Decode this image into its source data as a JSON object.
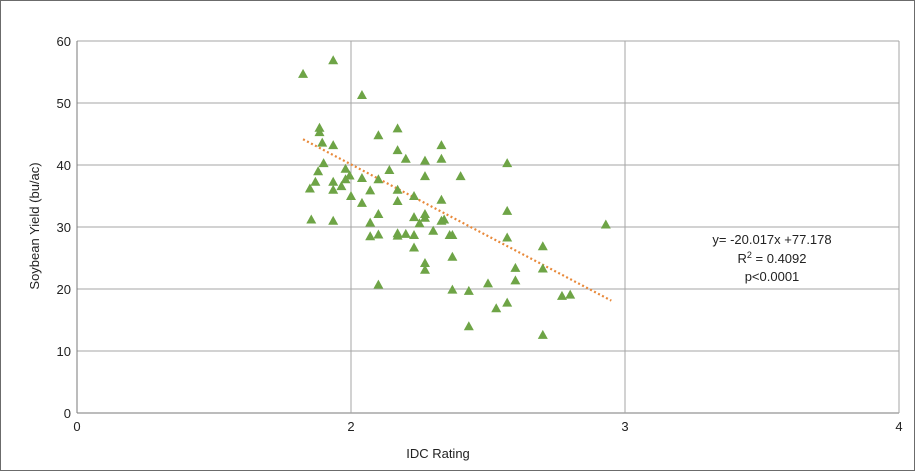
{
  "chart_data": {
    "type": "scatter",
    "title": "",
    "xlabel": "IDC Rating",
    "ylabel": "Soybean Yield (bu/ac)",
    "xlim": [
      0,
      4
    ],
    "ylim": [
      0,
      60
    ],
    "x_ticks": [
      "0",
      "2",
      "3",
      "4"
    ],
    "y_ticks": [
      "0",
      "10",
      "20",
      "30",
      "40",
      "50",
      "60"
    ],
    "grid": true,
    "marker": "triangle",
    "marker_color": "#6ea446",
    "trendline": {
      "style": "dotted",
      "color": "#e8893a",
      "x_start": 1.65,
      "x_end": 2.95,
      "equation": "y= -20.017x +77.178",
      "r_squared_label": "R",
      "r_squared_exp": "2",
      "r_squared_value": " = 0.4092",
      "p_value": "p<0.0001"
    },
    "points": [
      [
        1.65,
        54.7
      ],
      [
        1.7,
        36.2
      ],
      [
        1.71,
        31.2
      ],
      [
        1.74,
        37.3
      ],
      [
        1.76,
        39.0
      ],
      [
        1.77,
        46.0
      ],
      [
        1.77,
        45.3
      ],
      [
        1.79,
        43.6
      ],
      [
        1.8,
        40.3
      ],
      [
        1.87,
        56.9
      ],
      [
        1.87,
        43.2
      ],
      [
        1.87,
        37.3
      ],
      [
        1.87,
        36.0
      ],
      [
        1.87,
        31.0
      ],
      [
        1.93,
        36.6
      ],
      [
        1.96,
        39.4
      ],
      [
        1.96,
        37.7
      ],
      [
        1.99,
        38.3
      ],
      [
        2.0,
        35.0
      ],
      [
        2.04,
        51.3
      ],
      [
        2.04,
        37.9
      ],
      [
        2.04,
        33.9
      ],
      [
        2.07,
        35.9
      ],
      [
        2.07,
        30.7
      ],
      [
        2.07,
        28.5
      ],
      [
        2.1,
        44.8
      ],
      [
        2.1,
        37.7
      ],
      [
        2.1,
        32.1
      ],
      [
        2.1,
        28.8
      ],
      [
        2.1,
        20.7
      ],
      [
        2.14,
        39.2
      ],
      [
        2.17,
        45.9
      ],
      [
        2.17,
        42.4
      ],
      [
        2.17,
        36.0
      ],
      [
        2.17,
        34.2
      ],
      [
        2.17,
        29.0
      ],
      [
        2.17,
        28.6
      ],
      [
        2.2,
        41.0
      ],
      [
        2.2,
        28.9
      ],
      [
        2.23,
        35.0
      ],
      [
        2.23,
        31.6
      ],
      [
        2.23,
        28.7
      ],
      [
        2.23,
        26.7
      ],
      [
        2.25,
        30.6
      ],
      [
        2.27,
        40.7
      ],
      [
        2.27,
        38.2
      ],
      [
        2.27,
        32.1
      ],
      [
        2.27,
        31.5
      ],
      [
        2.27,
        24.2
      ],
      [
        2.27,
        23.1
      ],
      [
        2.3,
        29.4
      ],
      [
        2.33,
        43.2
      ],
      [
        2.33,
        41.0
      ],
      [
        2.33,
        34.4
      ],
      [
        2.33,
        31.0
      ],
      [
        2.34,
        31.2
      ],
      [
        2.36,
        28.7
      ],
      [
        2.37,
        28.7
      ],
      [
        2.37,
        25.2
      ],
      [
        2.37,
        19.9
      ],
      [
        2.4,
        38.2
      ],
      [
        2.43,
        19.7
      ],
      [
        2.43,
        14.0
      ],
      [
        2.5,
        20.9
      ],
      [
        2.53,
        16.9
      ],
      [
        2.57,
        40.3
      ],
      [
        2.57,
        32.6
      ],
      [
        2.57,
        28.3
      ],
      [
        2.57,
        17.8
      ],
      [
        2.6,
        23.4
      ],
      [
        2.6,
        21.4
      ],
      [
        2.7,
        26.9
      ],
      [
        2.7,
        23.3
      ],
      [
        2.7,
        12.6
      ],
      [
        2.77,
        18.9
      ],
      [
        2.8,
        19.1
      ],
      [
        2.93,
        30.4
      ]
    ]
  }
}
